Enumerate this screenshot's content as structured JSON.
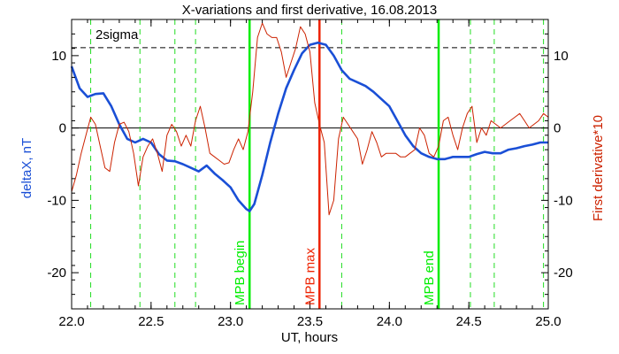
{
  "chart_data": {
    "type": "line",
    "title": "X-variations and first derivative, 16.08.2013",
    "xlabel": "UT, hours",
    "ylabel_left": "deltaX, nT",
    "ylabel_right": "First derivative*10",
    "xlim": [
      22.0,
      25.0
    ],
    "ylim": [
      -25,
      15
    ],
    "x_ticks": [
      22.0,
      22.5,
      23.0,
      23.5,
      24.0,
      24.5,
      25.0
    ],
    "x_tick_labels": [
      "22.0",
      "22.5",
      "23.0",
      "23.5",
      "24.0",
      "24.5",
      "25.0"
    ],
    "y_ticks": [
      -20,
      -10,
      0,
      10
    ],
    "y_tick_labels": [
      "-20",
      "-10",
      "0",
      "10"
    ],
    "zero_line": 0,
    "sigma_line": {
      "y": 11.1,
      "label": "2sigma"
    },
    "dashed_markers_x": [
      22.12,
      22.43,
      22.65,
      22.78,
      23.7,
      24.51,
      24.66,
      24.97
    ],
    "event_markers": [
      {
        "x": 23.12,
        "label": "MPB begin",
        "color": "#00ee00"
      },
      {
        "x": 23.56,
        "label": "MPB max",
        "color": "#ee2200"
      },
      {
        "x": 24.31,
        "label": "MPB end",
        "color": "#00ee00"
      }
    ],
    "series": [
      {
        "name": "deltaX, nT",
        "color": "#1a4fd6",
        "x": [
          22.0,
          22.05,
          22.1,
          22.15,
          22.2,
          22.25,
          22.3,
          22.35,
          22.4,
          22.45,
          22.5,
          22.55,
          22.6,
          22.65,
          22.7,
          22.75,
          22.8,
          22.85,
          22.9,
          22.95,
          23.0,
          23.05,
          23.1,
          23.12,
          23.15,
          23.2,
          23.25,
          23.3,
          23.35,
          23.4,
          23.45,
          23.5,
          23.55,
          23.6,
          23.65,
          23.7,
          23.75,
          23.8,
          23.85,
          23.9,
          23.95,
          24.0,
          24.05,
          24.1,
          24.15,
          24.2,
          24.25,
          24.3,
          24.35,
          24.4,
          24.45,
          24.5,
          24.55,
          24.6,
          24.65,
          24.7,
          24.75,
          24.8,
          24.85,
          24.9,
          24.95,
          25.0
        ],
        "values": [
          8.5,
          5.5,
          4.3,
          4.7,
          4.8,
          3.0,
          0.5,
          -1.5,
          -2.0,
          -1.5,
          -2.0,
          -3.6,
          -4.5,
          -4.6,
          -5.0,
          -5.5,
          -6.0,
          -5.2,
          -6.3,
          -7.2,
          -8.2,
          -10.0,
          -11.2,
          -11.5,
          -10.5,
          -6.5,
          -2.0,
          2.0,
          5.5,
          8.0,
          10.3,
          11.5,
          11.8,
          11.5,
          10.0,
          8.0,
          6.8,
          6.3,
          5.8,
          5.0,
          4.0,
          3.0,
          1.0,
          -1.0,
          -2.5,
          -3.5,
          -4.0,
          -4.3,
          -4.3,
          -4.0,
          -4.0,
          -4.0,
          -3.6,
          -3.3,
          -3.5,
          -3.5,
          -3.0,
          -2.8,
          -2.5,
          -2.3,
          -2.0,
          -2.0
        ]
      },
      {
        "name": "First derivative*10",
        "color": "#cc2200",
        "x": [
          22.0,
          22.03,
          22.06,
          22.09,
          22.12,
          22.15,
          22.18,
          22.21,
          22.24,
          22.27,
          22.3,
          22.33,
          22.36,
          22.39,
          22.42,
          22.45,
          22.48,
          22.51,
          22.54,
          22.57,
          22.6,
          22.63,
          22.66,
          22.69,
          22.72,
          22.75,
          22.78,
          22.81,
          22.84,
          22.87,
          22.9,
          22.93,
          22.96,
          22.99,
          23.02,
          23.05,
          23.08,
          23.11,
          23.14,
          23.17,
          23.2,
          23.23,
          23.26,
          23.29,
          23.32,
          23.35,
          23.38,
          23.41,
          23.44,
          23.47,
          23.5,
          23.53,
          23.56,
          23.59,
          23.62,
          23.65,
          23.68,
          23.71,
          23.74,
          23.77,
          23.8,
          23.83,
          23.86,
          23.89,
          23.92,
          23.95,
          23.98,
          24.01,
          24.04,
          24.07,
          24.1,
          24.13,
          24.16,
          24.19,
          24.22,
          24.25,
          24.28,
          24.31,
          24.34,
          24.37,
          24.4,
          24.43,
          24.46,
          24.49,
          24.52,
          24.55,
          24.58,
          24.61,
          24.64,
          24.67,
          24.7,
          24.73,
          24.76,
          24.79,
          24.82,
          24.85,
          24.88,
          24.91,
          24.94,
          24.97,
          25.0
        ],
        "values": [
          -8.8,
          -6.5,
          -3.5,
          -1.0,
          1.5,
          0.5,
          -2.5,
          -5.5,
          -6.0,
          -2.0,
          0.5,
          0.8,
          -0.5,
          -3.5,
          -8.0,
          -4.0,
          -2.5,
          -1.5,
          -3.5,
          -6.0,
          -1.0,
          0.5,
          -0.5,
          -2.5,
          -1.0,
          -2.5,
          1.0,
          3.0,
          0.0,
          -3.5,
          -4.0,
          -4.5,
          -5.0,
          -4.8,
          -3.0,
          -1.5,
          -3.0,
          -0.5,
          5.0,
          12.5,
          14.5,
          13.0,
          12.5,
          12.5,
          10.5,
          7.0,
          9.0,
          11.0,
          14.0,
          13.0,
          10.5,
          3.5,
          0.5,
          -2.0,
          -12.0,
          -10.0,
          -1.5,
          1.5,
          0.5,
          -0.5,
          -1.5,
          -5.0,
          -3.0,
          -0.5,
          -2.0,
          -4.0,
          -3.5,
          -3.5,
          -3.5,
          -4.0,
          -4.0,
          -3.5,
          -3.0,
          0.0,
          -1.0,
          -3.5,
          -4.0,
          -2.5,
          1.0,
          1.5,
          -1.0,
          -3.0,
          0.0,
          2.0,
          3.0,
          -2.0,
          0.0,
          -1.0,
          1.0,
          0.5,
          0.0,
          0.5,
          1.0,
          1.5,
          2.0,
          1.0,
          0.0,
          0.5,
          1.0,
          2.0,
          1.5
        ]
      }
    ],
    "grid": false,
    "legend": "none"
  }
}
